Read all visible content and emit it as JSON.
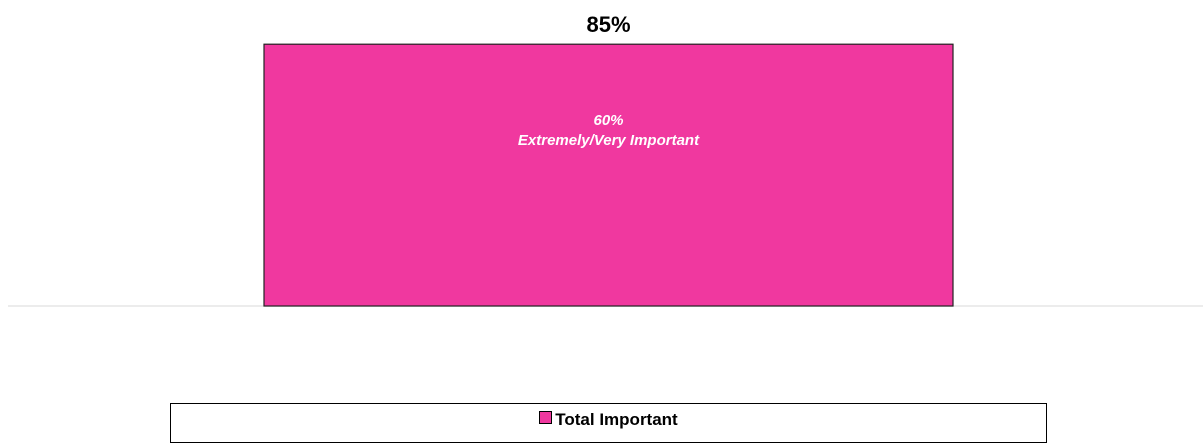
{
  "chart_data": {
    "type": "bar",
    "title": "",
    "xlabel": "",
    "ylabel": "",
    "ylim": [
      0,
      100
    ],
    "grid": false,
    "legend_position": "bottom",
    "categories": [
      ""
    ],
    "series": [
      {
        "name": "Total Important",
        "values": [
          85
        ],
        "value_label": "85%",
        "color": "#f0389f"
      }
    ],
    "annotations": [
      {
        "value": 60,
        "line1": "60%",
        "line2": "Extremely/Very Important"
      }
    ]
  },
  "colors": {
    "bar_fill": "#f0389f",
    "bar_stroke": "#222222",
    "baseline": "#e6e6e6",
    "inner_text": "#ffffff"
  }
}
